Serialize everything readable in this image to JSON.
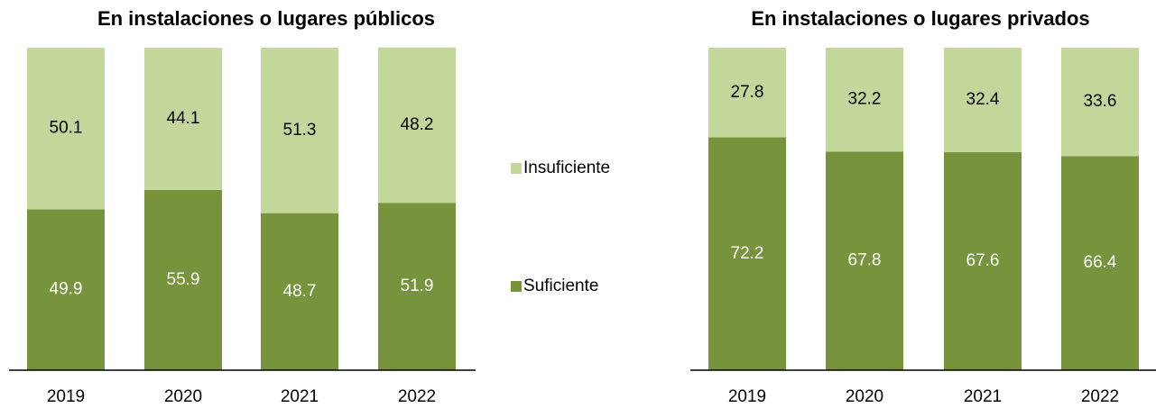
{
  "chart_data": [
    {
      "type": "stacked_bar",
      "title": "En instalaciones o lugares públicos",
      "categories": [
        "2019",
        "2020",
        "2021",
        "2022"
      ],
      "series": [
        {
          "name": "Suficiente",
          "color": "#77933c",
          "values": [
            49.9,
            55.9,
            48.7,
            51.9
          ]
        },
        {
          "name": "Insuficiente",
          "color": "#c4d79b",
          "values": [
            50.1,
            44.1,
            51.3,
            48.2
          ]
        }
      ],
      "ylim": [
        0,
        100
      ]
    },
    {
      "type": "stacked_bar",
      "title": "En instalaciones o lugares privados",
      "categories": [
        "2019",
        "2020",
        "2021",
        "2022"
      ],
      "series": [
        {
          "color": "#77933c",
          "values": [
            72.2,
            67.8,
            67.6,
            66.4
          ]
        },
        {
          "color": "#c4d79b",
          "values": [
            27.8,
            32.2,
            32.4,
            33.6
          ]
        }
      ],
      "ylim": [
        0,
        100
      ]
    }
  ]
}
